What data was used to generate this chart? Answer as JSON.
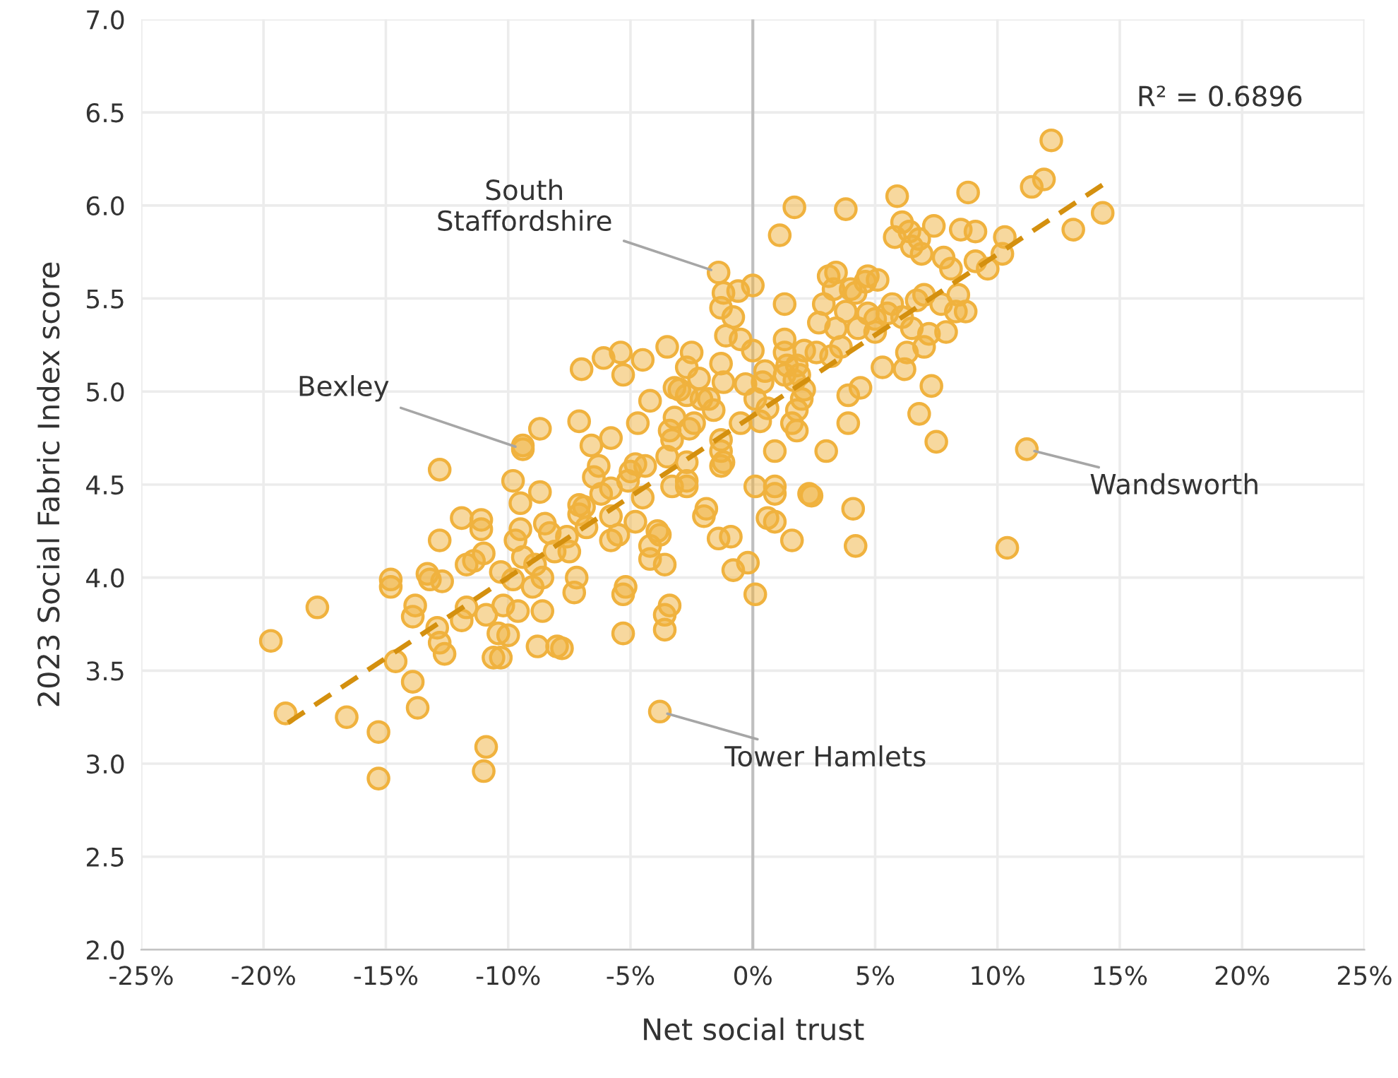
{
  "chart_data": {
    "type": "scatter",
    "xlabel": "Net social trust",
    "ylabel": "2023 Social Fabric Index score",
    "xlim": [
      -25,
      25
    ],
    "ylim": [
      2.0,
      7.0
    ],
    "xticks": [
      {
        "value": -25,
        "label": "-25%"
      },
      {
        "value": -20,
        "label": "-20%"
      },
      {
        "value": -15,
        "label": "-15%"
      },
      {
        "value": -10,
        "label": "-10%"
      },
      {
        "value": -5,
        "label": "-5%"
      },
      {
        "value": 0,
        "label": "0%"
      },
      {
        "value": 5,
        "label": "5%"
      },
      {
        "value": 10,
        "label": "10%"
      },
      {
        "value": 15,
        "label": "15%"
      },
      {
        "value": 20,
        "label": "20%"
      },
      {
        "value": 25,
        "label": "25%"
      }
    ],
    "yticks": [
      {
        "value": 2.0,
        "label": "2.0"
      },
      {
        "value": 2.5,
        "label": "2.5"
      },
      {
        "value": 3.0,
        "label": "3.0"
      },
      {
        "value": 3.5,
        "label": "3.5"
      },
      {
        "value": 4.0,
        "label": "4.0"
      },
      {
        "value": 4.5,
        "label": "4.5"
      },
      {
        "value": 5.0,
        "label": "5.0"
      },
      {
        "value": 5.5,
        "label": "5.5"
      },
      {
        "value": 6.0,
        "label": "6.0"
      },
      {
        "value": 6.5,
        "label": "6.5"
      },
      {
        "value": 7.0,
        "label": "7.0"
      }
    ],
    "grid": true,
    "marker": "circle",
    "ref_lines": [
      {
        "axis": "x",
        "value": 0,
        "color": "#bfbfbf"
      }
    ],
    "series": [
      {
        "color": "#f0b23e",
        "x": [
          -19.7,
          -19.1,
          -17.8,
          -16.6,
          -15.3,
          -15.3,
          -14.8,
          -14.8,
          -14.6,
          -13.9,
          -13.7,
          -13.8,
          -13.9,
          -13.3,
          -13.2,
          -12.8,
          -12.8,
          -12.7,
          -12.9,
          -12.8,
          -12.6,
          -11.9,
          -11.9,
          -11.7,
          -11.7,
          -11.4,
          -11.1,
          -11.1,
          -11.0,
          -10.9,
          -11.0,
          -10.9,
          -10.6,
          -10.3,
          -10.4,
          -10.2,
          -10.3,
          -10.0,
          -9.7,
          -9.8,
          -9.6,
          -9.4,
          -9.4,
          -9.8,
          -9.5,
          -9.5,
          -9.4,
          -9.0,
          -8.9,
          -8.7,
          -8.7,
          -8.8,
          -8.6,
          -8.6,
          -8.5,
          -8.3,
          -8.1,
          -8.0,
          -7.8,
          -7.6,
          -7.5,
          -7.3,
          -7.2,
          -7.1,
          -7.1,
          -7.0,
          -7.1,
          -6.9,
          -6.8,
          -6.5,
          -6.6,
          -6.3,
          -6.1,
          -6.2,
          -5.8,
          -5.8,
          -5.8,
          -5.8,
          -5.5,
          -5.4,
          -5.3,
          -5.3,
          -5.3,
          -5.2,
          -5.1,
          -5.0,
          -4.8,
          -4.8,
          -4.7,
          -4.5,
          -4.5,
          -4.4,
          -4.2,
          -4.2,
          -4.2,
          -3.9,
          -3.8,
          -3.6,
          -3.6,
          -3.6,
          -3.4,
          -3.8,
          -3.5,
          -3.5,
          -3.3,
          -3.2,
          -3.2,
          -3.0,
          -3.3,
          -3.4,
          -2.7,
          -2.7,
          -2.6,
          -2.7,
          -2.7,
          -2.7,
          -2.5,
          -2.2,
          -2.1,
          -2.4,
          -2.0,
          -1.9,
          -1.8,
          -1.6,
          -1.4,
          -1.3,
          -1.2,
          -1.3,
          -1.3,
          -1.3,
          -1.2,
          -1.4,
          -1.1,
          -1.3,
          -1.2,
          -0.9,
          -0.8,
          -0.8,
          -0.6,
          -0.5,
          -0.5,
          -0.3,
          -0.2,
          0.0,
          0.0,
          0.1,
          0.1,
          0.1,
          0.4,
          0.5,
          0.3,
          0.6,
          0.9,
          0.9,
          0.9,
          0.9,
          0.6,
          1.1,
          1.3,
          1.3,
          1.3,
          1.3,
          1.4,
          1.6,
          1.6,
          1.7,
          1.7,
          1.8,
          1.8,
          1.8,
          1.9,
          2.0,
          2.1,
          2.1,
          2.3,
          2.4,
          2.6,
          2.7,
          2.9,
          3.0,
          3.1,
          3.2,
          3.3,
          3.4,
          3.4,
          3.6,
          3.8,
          3.8,
          3.9,
          3.9,
          4.0,
          4.1,
          4.2,
          4.2,
          4.3,
          4.4,
          4.6,
          4.7,
          4.7,
          5.0,
          5.0,
          5.1,
          5.3,
          5.5,
          5.7,
          5.8,
          5.9,
          6.1,
          6.1,
          6.2,
          6.3,
          6.4,
          6.5,
          6.5,
          6.8,
          6.7,
          6.8,
          6.9,
          7.0,
          7.0,
          7.2,
          7.3,
          7.4,
          7.5,
          7.7,
          7.8,
          7.9,
          8.1,
          8.3,
          8.4,
          8.5,
          8.7,
          8.8,
          9.1,
          9.1,
          9.6,
          10.2,
          10.3,
          10.4,
          11.2,
          11.4,
          11.9,
          12.2,
          13.1,
          14.3
        ],
        "values": [
          3.66,
          3.27,
          3.84,
          3.25,
          3.17,
          2.92,
          3.99,
          3.95,
          3.55,
          3.44,
          3.3,
          3.85,
          3.79,
          4.02,
          3.99,
          4.58,
          4.2,
          3.98,
          3.73,
          3.65,
          3.59,
          3.77,
          4.32,
          3.84,
          4.07,
          4.09,
          4.31,
          4.26,
          4.13,
          3.09,
          2.96,
          3.8,
          3.57,
          3.57,
          3.7,
          3.85,
          4.03,
          3.69,
          4.2,
          3.99,
          3.82,
          4.71,
          4.69,
          4.52,
          4.4,
          4.26,
          4.11,
          3.95,
          4.07,
          4.8,
          4.46,
          3.63,
          3.82,
          4.0,
          4.29,
          4.24,
          4.14,
          3.63,
          3.62,
          4.22,
          4.14,
          3.92,
          4.0,
          4.39,
          4.84,
          5.12,
          4.34,
          4.38,
          4.27,
          4.54,
          4.71,
          4.6,
          5.18,
          4.45,
          4.75,
          4.48,
          4.33,
          4.2,
          4.23,
          5.21,
          5.09,
          3.91,
          3.7,
          3.95,
          4.52,
          4.57,
          4.61,
          4.3,
          4.83,
          4.43,
          5.17,
          4.6,
          4.95,
          4.17,
          4.1,
          4.25,
          4.23,
          3.8,
          3.72,
          4.07,
          3.85,
          3.28,
          5.24,
          4.65,
          4.74,
          4.86,
          5.02,
          5.01,
          4.49,
          4.79,
          5.13,
          4.98,
          4.8,
          4.62,
          4.52,
          4.49,
          5.21,
          5.07,
          4.96,
          4.83,
          4.33,
          4.37,
          4.96,
          4.9,
          4.21,
          4.6,
          4.62,
          4.74,
          4.68,
          5.45,
          5.53,
          5.64,
          5.3,
          5.15,
          5.05,
          4.22,
          4.04,
          5.4,
          5.54,
          5.28,
          4.83,
          5.04,
          4.08,
          5.22,
          5.57,
          3.91,
          4.49,
          4.96,
          5.05,
          5.11,
          4.84,
          4.32,
          4.68,
          4.49,
          4.45,
          4.3,
          4.91,
          5.84,
          5.47,
          5.21,
          5.28,
          5.09,
          5.14,
          4.83,
          4.2,
          5.99,
          5.06,
          4.9,
          4.79,
          5.14,
          5.09,
          4.96,
          5.22,
          5.01,
          4.45,
          4.44,
          5.21,
          5.37,
          5.47,
          4.68,
          5.62,
          5.19,
          5.55,
          5.34,
          5.64,
          5.24,
          5.98,
          5.43,
          4.83,
          4.98,
          5.55,
          4.37,
          4.17,
          5.53,
          5.34,
          5.02,
          5.59,
          5.42,
          5.62,
          5.32,
          5.39,
          5.6,
          5.13,
          5.42,
          5.47,
          5.83,
          6.05,
          5.91,
          5.4,
          5.12,
          5.21,
          5.86,
          5.34,
          5.78,
          5.82,
          5.49,
          4.88,
          5.74,
          5.24,
          5.52,
          5.31,
          5.03,
          5.89,
          4.73,
          5.47,
          5.72,
          5.32,
          5.66,
          5.43,
          5.52,
          5.87,
          5.43,
          6.07,
          5.86,
          5.7,
          5.66,
          5.74,
          5.83,
          4.16,
          4.69,
          6.1,
          6.14,
          6.35,
          5.87,
          5.96
        ]
      },
      {
        "type": "line",
        "color": "#d4900f",
        "line_style": "dashed",
        "marker": "none",
        "x": [
          -19.0,
          14.4
        ],
        "values": [
          3.22,
          6.12
        ]
      }
    ],
    "annotations": [
      {
        "text": "South\nStaffordshire",
        "x": -1.4,
        "y": 5.64
      },
      {
        "text": "Bexley",
        "x": -9.4,
        "y": 4.69
      },
      {
        "text": "Wandsworth",
        "x": 11.2,
        "y": 4.69
      },
      {
        "text": "Tower Hamlets",
        "x": -3.8,
        "y": 3.28
      },
      "R² = 0.6896"
    ]
  }
}
